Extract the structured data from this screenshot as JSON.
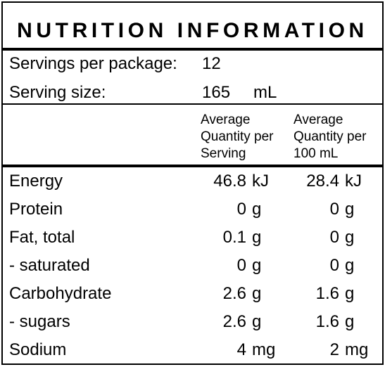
{
  "panel": {
    "title": "NUTRITION INFORMATION"
  },
  "servings": {
    "per_package_label": "Servings per package:",
    "per_package_value": "12",
    "size_label": "Serving size:",
    "size_value": "165",
    "size_unit": "mL"
  },
  "columns": {
    "per_serving": [
      "Average",
      "Quantity per",
      "Serving"
    ],
    "per_100": [
      "Average",
      "Quantity per",
      "100 mL"
    ]
  },
  "rows": [
    {
      "name": "Energy",
      "serving": "46.8",
      "serving_unit": "kJ",
      "per100": "28.4",
      "per100_unit": "kJ"
    },
    {
      "name": "Protein",
      "serving": "0",
      "serving_unit": "g",
      "per100": "0",
      "per100_unit": "g"
    },
    {
      "name": "Fat, total",
      "serving": "0.1",
      "serving_unit": "g",
      "per100": "0",
      "per100_unit": "g"
    },
    {
      "name": "- saturated",
      "serving": "0",
      "serving_unit": "g",
      "per100": "0",
      "per100_unit": "g"
    },
    {
      "name": "Carbohydrate",
      "serving": "2.6",
      "serving_unit": "g",
      "per100": "1.6",
      "per100_unit": "g"
    },
    {
      "name": "- sugars",
      "serving": "2.6",
      "serving_unit": "g",
      "per100": "1.6",
      "per100_unit": "g"
    },
    {
      "name": "Sodium",
      "serving": "4",
      "serving_unit": "mg",
      "per100": "2",
      "per100_unit": "mg"
    }
  ]
}
